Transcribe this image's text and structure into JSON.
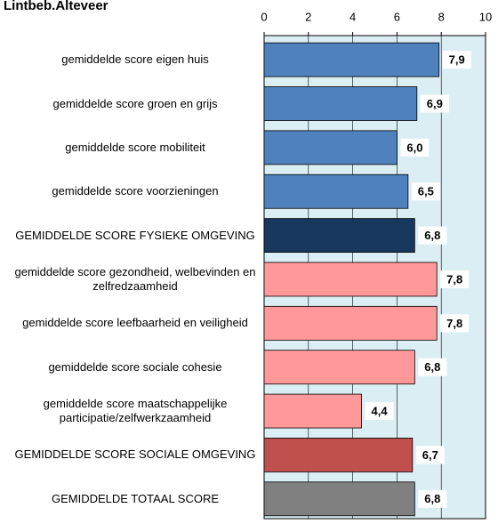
{
  "chart_data": {
    "type": "bar",
    "orientation": "horizontal",
    "title": "Lintbeb.Alteveer",
    "categories": [
      "gemiddelde score eigen huis",
      "gemiddelde score groen en grijs",
      "gemiddelde score mobiliteit",
      "gemiddelde score voorzieningen",
      "GEMIDDELDE SCORE FYSIEKE OMGEVING",
      "gemiddelde score gezondheid, welbevinden en zelfredzaamheid",
      "gemiddelde score leefbaarheid en veiligheid",
      "gemiddelde score sociale cohesie",
      "gemiddelde score maatschappelijke participatie/zelfwerkzaamheid",
      "GEMIDDELDE SCORE SOCIALE OMGEVING",
      "GEMIDDELDE TOTAAL SCORE"
    ],
    "values": [
      7.9,
      6.9,
      6.0,
      6.5,
      6.8,
      7.8,
      7.8,
      6.8,
      4.4,
      6.7,
      6.8
    ],
    "value_labels": [
      "7,9",
      "6,9",
      "6,0",
      "6,5",
      "6,8",
      "7,8",
      "7,8",
      "6,8",
      "4,4",
      "6,7",
      "6,8"
    ],
    "colors": [
      "#4f81bd",
      "#4f81bd",
      "#4f81bd",
      "#4f81bd",
      "#17375e",
      "#ff9999",
      "#ff9999",
      "#ff9999",
      "#ff9999",
      "#c0504d",
      "#808080"
    ],
    "xlim": [
      0,
      10
    ],
    "xticks": [
      0,
      2,
      4,
      6,
      8,
      10
    ],
    "grid": true,
    "plot_background": "#dbeef4"
  }
}
